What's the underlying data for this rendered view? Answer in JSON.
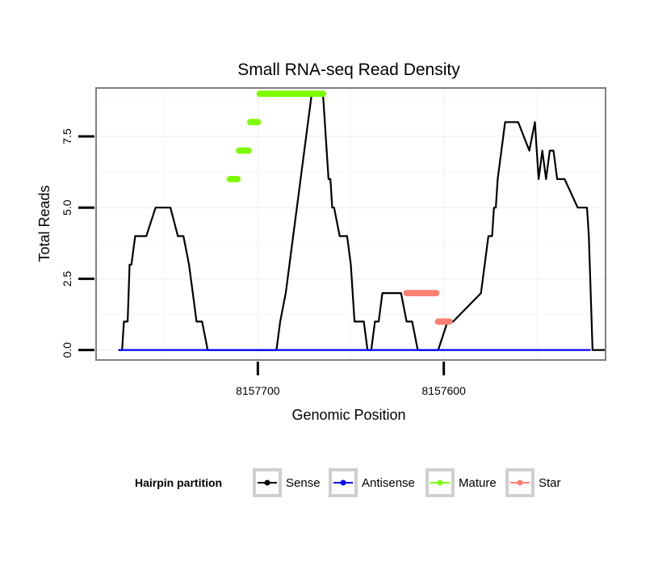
{
  "chart_data": {
    "type": "line",
    "title": "Small RNA-seq Read Density",
    "xlabel": "Genomic Position",
    "ylabel": "Total Reads",
    "x_reversed": true,
    "xlim": [
      8157787,
      8157513
    ],
    "ylim": [
      -0.35,
      9.2
    ],
    "x_ticks": [
      8157700,
      8157600
    ],
    "x_tick_labels": [
      "8157700",
      "8157600"
    ],
    "y_ticks": [
      0,
      2.5,
      5,
      7.5
    ],
    "y_tick_labels": [
      "0.0",
      "2.5",
      "5.0",
      "7.5"
    ],
    "grid": true,
    "legend_position": "bottom",
    "legend": {
      "title": "Hairpin partition",
      "entries": [
        {
          "key": "sense",
          "label": "Sense",
          "color": "#000000"
        },
        {
          "key": "antisense",
          "label": "Antisense",
          "color": "#0000ff"
        },
        {
          "key": "mature",
          "label": "Mature",
          "color": "#7cfc00"
        },
        {
          "key": "star",
          "label": "Star",
          "color": "#fa8072"
        }
      ]
    },
    "series": [
      {
        "name": "Sense",
        "color": "#000000",
        "style": "step-line",
        "x": [
          8157775,
          8157773,
          8157772,
          8157770,
          8157769,
          8157768,
          8157766,
          8157760,
          8157755,
          8157747,
          8157743,
          8157740,
          8157737,
          8157735,
          8157733,
          8157730,
          8157727,
          8157725,
          8157714,
          8157711,
          8157707,
          8157704,
          8157701,
          8157698,
          8157695,
          8157692,
          8157690,
          8157688,
          8157685,
          8157683,
          8157681,
          8157679,
          8157677,
          8157675,
          8157673,
          8157671,
          8157665,
          8157664,
          8157663,
          8157662,
          8157661,
          8157660,
          8157659,
          8157656,
          8157654,
          8157652,
          8157650,
          8157649,
          8157648,
          8157643,
          8157641,
          8157639,
          8157637,
          8157635,
          8157633,
          8157631,
          8157628,
          8157626,
          8157623,
          8157620,
          8157617,
          8157614,
          8157612,
          8157607,
          8157605,
          8157603,
          8157598,
          8157595,
          8157580,
          8157578,
          8157576,
          8157574,
          8157573,
          8157572,
          8157571,
          8157569,
          8157567,
          8157560,
          8157554,
          8157551,
          8157549,
          8157547,
          8157545,
          8157543,
          8157541,
          8157539,
          8157537,
          8157535,
          8157528,
          8157523,
          8157522,
          8157521,
          8157520,
          8157513
        ],
        "values": [
          0,
          0,
          1,
          1,
          3,
          3,
          4,
          4,
          5,
          5,
          4,
          4,
          3,
          2,
          1,
          1,
          0,
          0,
          0,
          0,
          0,
          0,
          0,
          0,
          0,
          0,
          0,
          1,
          2,
          3,
          4,
          5,
          6,
          7,
          8,
          9,
          9,
          8,
          7,
          6,
          6,
          5,
          5,
          4,
          4,
          4,
          3,
          2,
          1,
          1,
          0,
          0,
          1,
          1,
          2,
          2,
          2,
          2,
          2,
          1,
          1,
          0,
          0,
          0,
          0,
          0,
          1,
          1,
          2,
          3,
          4,
          4,
          5,
          5,
          6,
          7,
          8,
          8,
          7,
          8,
          6,
          7,
          6,
          7,
          7,
          6,
          6,
          6,
          5,
          5,
          4,
          2,
          0,
          0
        ]
      },
      {
        "name": "Antisense",
        "color": "#0000ff",
        "style": "line",
        "x": [
          8157775,
          8157521
        ],
        "values": [
          0,
          0
        ]
      },
      {
        "name": "Mature",
        "color": "#7cfc00",
        "style": "points",
        "x": [
          8157715,
          8157714,
          8157713,
          8157712,
          8157711,
          8157710,
          8157709,
          8157708,
          8157707,
          8157706,
          8157705,
          8157704,
          8157703,
          8157702,
          8157701,
          8157700,
          8157699,
          8157698,
          8157697,
          8157696,
          8157695,
          8157694,
          8157693,
          8157692,
          8157691,
          8157690,
          8157689,
          8157688,
          8157687,
          8157686,
          8157685,
          8157684,
          8157683,
          8157682,
          8157681,
          8157680,
          8157679,
          8157678,
          8157677,
          8157676,
          8157675,
          8157674,
          8157673,
          8157672,
          8157671,
          8157670,
          8157669,
          8157668,
          8157667,
          8157666,
          8157665
        ],
        "values": [
          6,
          6,
          6,
          6,
          6,
          7,
          7,
          7,
          7,
          7,
          7,
          8,
          8,
          8,
          8,
          8,
          9,
          9,
          9,
          9,
          9,
          9,
          9,
          9,
          9,
          9,
          9,
          9,
          9,
          9,
          9,
          9,
          9,
          9,
          9,
          9,
          9,
          9,
          9,
          9,
          9,
          9,
          9,
          9,
          9,
          9,
          9,
          9,
          9,
          9,
          9
        ]
      },
      {
        "name": "Star",
        "color": "#fa8072",
        "style": "points",
        "x": [
          8157620,
          8157619,
          8157618,
          8157617,
          8157616,
          8157615,
          8157614,
          8157613,
          8157612,
          8157611,
          8157610,
          8157609,
          8157608,
          8157607,
          8157606,
          8157605,
          8157604,
          8157603,
          8157602,
          8157601,
          8157600,
          8157599,
          8157598,
          8157597
        ],
        "values": [
          2,
          2,
          2,
          2,
          2,
          2,
          2,
          2,
          2,
          2,
          2,
          2,
          2,
          2,
          2,
          2,
          2,
          1,
          1,
          1,
          1,
          1,
          1,
          1
        ]
      }
    ]
  }
}
